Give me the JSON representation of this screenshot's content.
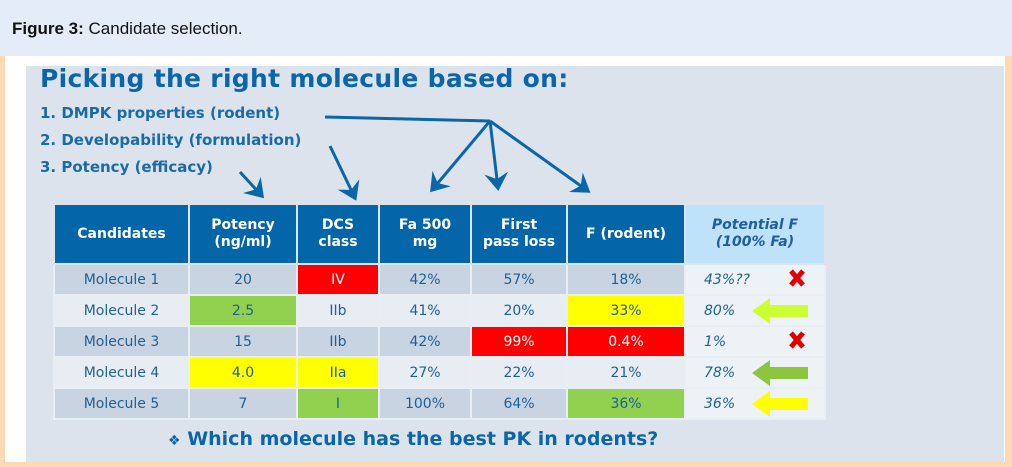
{
  "caption": {
    "label": "Figure 3:",
    "text": "Candidate selection."
  },
  "slide": {
    "title": "Picking the right molecule based on:",
    "criteria": [
      "1.  DMPK properties (rodent)",
      "2.  Developability (formulation)",
      "3.  Potency (efficacy)"
    ],
    "question": "Which molecule has the best PK in rodents?",
    "bullet_icon": "diamond-bullet"
  },
  "table": {
    "headers": [
      "Candidates",
      "Potency (ng/ml)",
      "DCS class",
      "Fa 500 mg",
      "First pass loss",
      "F (rodent)",
      "Potential F (100% Fa)"
    ],
    "rows": [
      {
        "cells": [
          "Molecule 1",
          "20",
          "IV",
          "42%",
          "57%",
          "18%"
        ],
        "potential": "43%??",
        "mark": "x-mark",
        "highlights": [
          "",
          "",
          "red",
          "",
          "",
          ""
        ]
      },
      {
        "cells": [
          "Molecule 2",
          "2.5",
          "IIb",
          "41%",
          "20%",
          "33%"
        ],
        "potential": "80%",
        "mark": "arrow-left",
        "mark_color": "#ccff33",
        "highlights": [
          "",
          "green",
          "",
          "",
          "",
          "yellow"
        ]
      },
      {
        "cells": [
          "Molecule 3",
          "15",
          "IIb",
          "42%",
          "99%",
          "0.4%"
        ],
        "potential": "1%",
        "mark": "x-mark",
        "highlights": [
          "",
          "",
          "",
          "",
          "red",
          "red"
        ]
      },
      {
        "cells": [
          "Molecule 4",
          "4.0",
          "IIa",
          "27%",
          "22%",
          "21%"
        ],
        "potential": "78%",
        "mark": "arrow-left",
        "mark_color": "#8cc63f",
        "highlights": [
          "",
          "yellow",
          "yellow",
          "",
          "",
          ""
        ]
      },
      {
        "cells": [
          "Molecule 5",
          "7",
          "I",
          "100%",
          "64%",
          "36%"
        ],
        "potential": "36%",
        "mark": "arrow-left",
        "mark_color": "#ffff00",
        "highlights": [
          "",
          "",
          "green",
          "",
          "",
          "green"
        ]
      }
    ]
  },
  "colors": {
    "accent": "#0466a8",
    "red": "#ff0000",
    "yellow": "#ffff00",
    "green": "#92d050"
  }
}
